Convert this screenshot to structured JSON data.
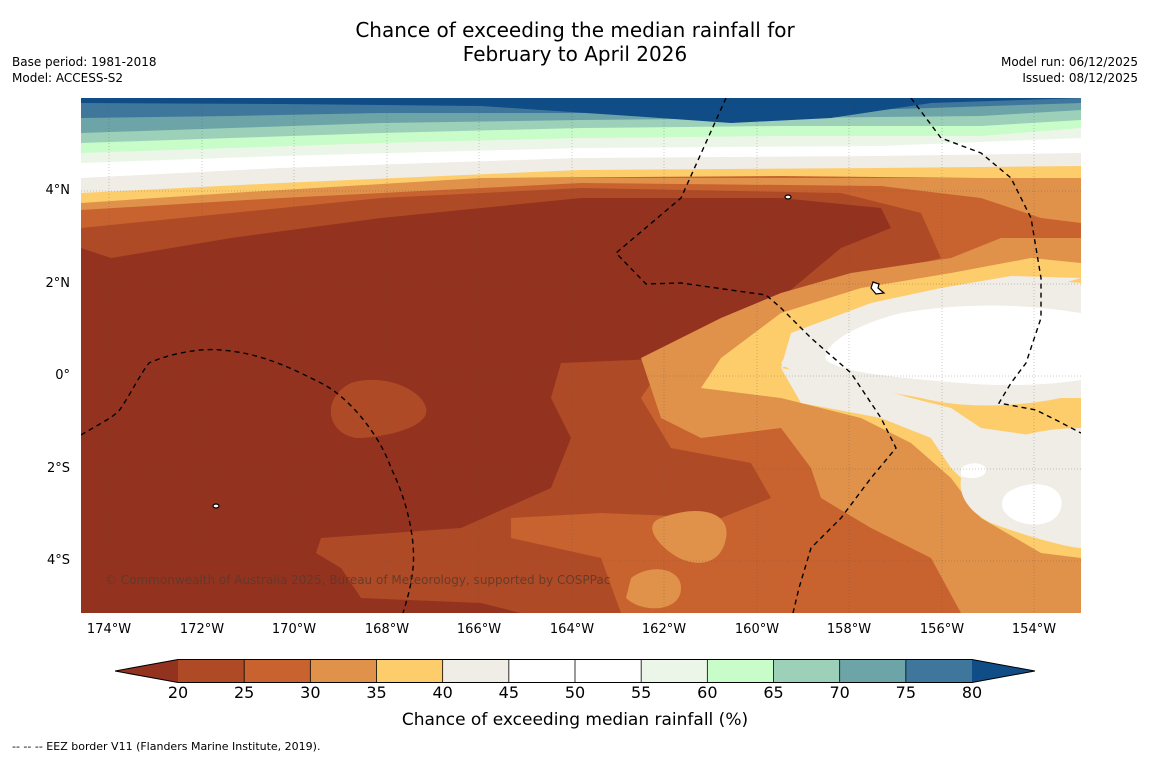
{
  "title": {
    "line1": "Chance of exceeding the median rainfall for",
    "line2": "February to April 2026"
  },
  "meta_left": {
    "base_period": "Base period: 1981-2018",
    "model": "Model: ACCESS-S2"
  },
  "meta_right": {
    "model_run": "Model run: 06/12/2025",
    "issued": "Issued: 08/12/2025"
  },
  "y_ticks": [
    "4°N",
    "2°N",
    "0°",
    "2°S",
    "4°S"
  ],
  "x_ticks": [
    "174°W",
    "172°W",
    "170°W",
    "168°W",
    "166°W",
    "164°W",
    "162°W",
    "160°W",
    "158°W",
    "156°W",
    "154°W"
  ],
  "copyright": "© Commonwealth of Australia 2025, Bureau of Meteorology, supported by COSPPac",
  "colorbar": {
    "ticks": [
      "20",
      "25",
      "30",
      "35",
      "40",
      "45",
      "50",
      "55",
      "60",
      "65",
      "70",
      "75",
      "80"
    ],
    "colors": [
      "#943220",
      "#af4a26",
      "#c8632f",
      "#e0924a",
      "#fdcd6c",
      "#f0ece6",
      "#ffffff",
      "#ffffff",
      "#ecf6e8",
      "#c8fcc8",
      "#9cd0b8",
      "#6ca4a8",
      "#3f779c",
      "#104c86"
    ],
    "label": "Chance of exceeding median rainfall (%)"
  },
  "footnote": "--  --  -- EEZ border V11 (Flanders Marine Institute, 2019)."
}
